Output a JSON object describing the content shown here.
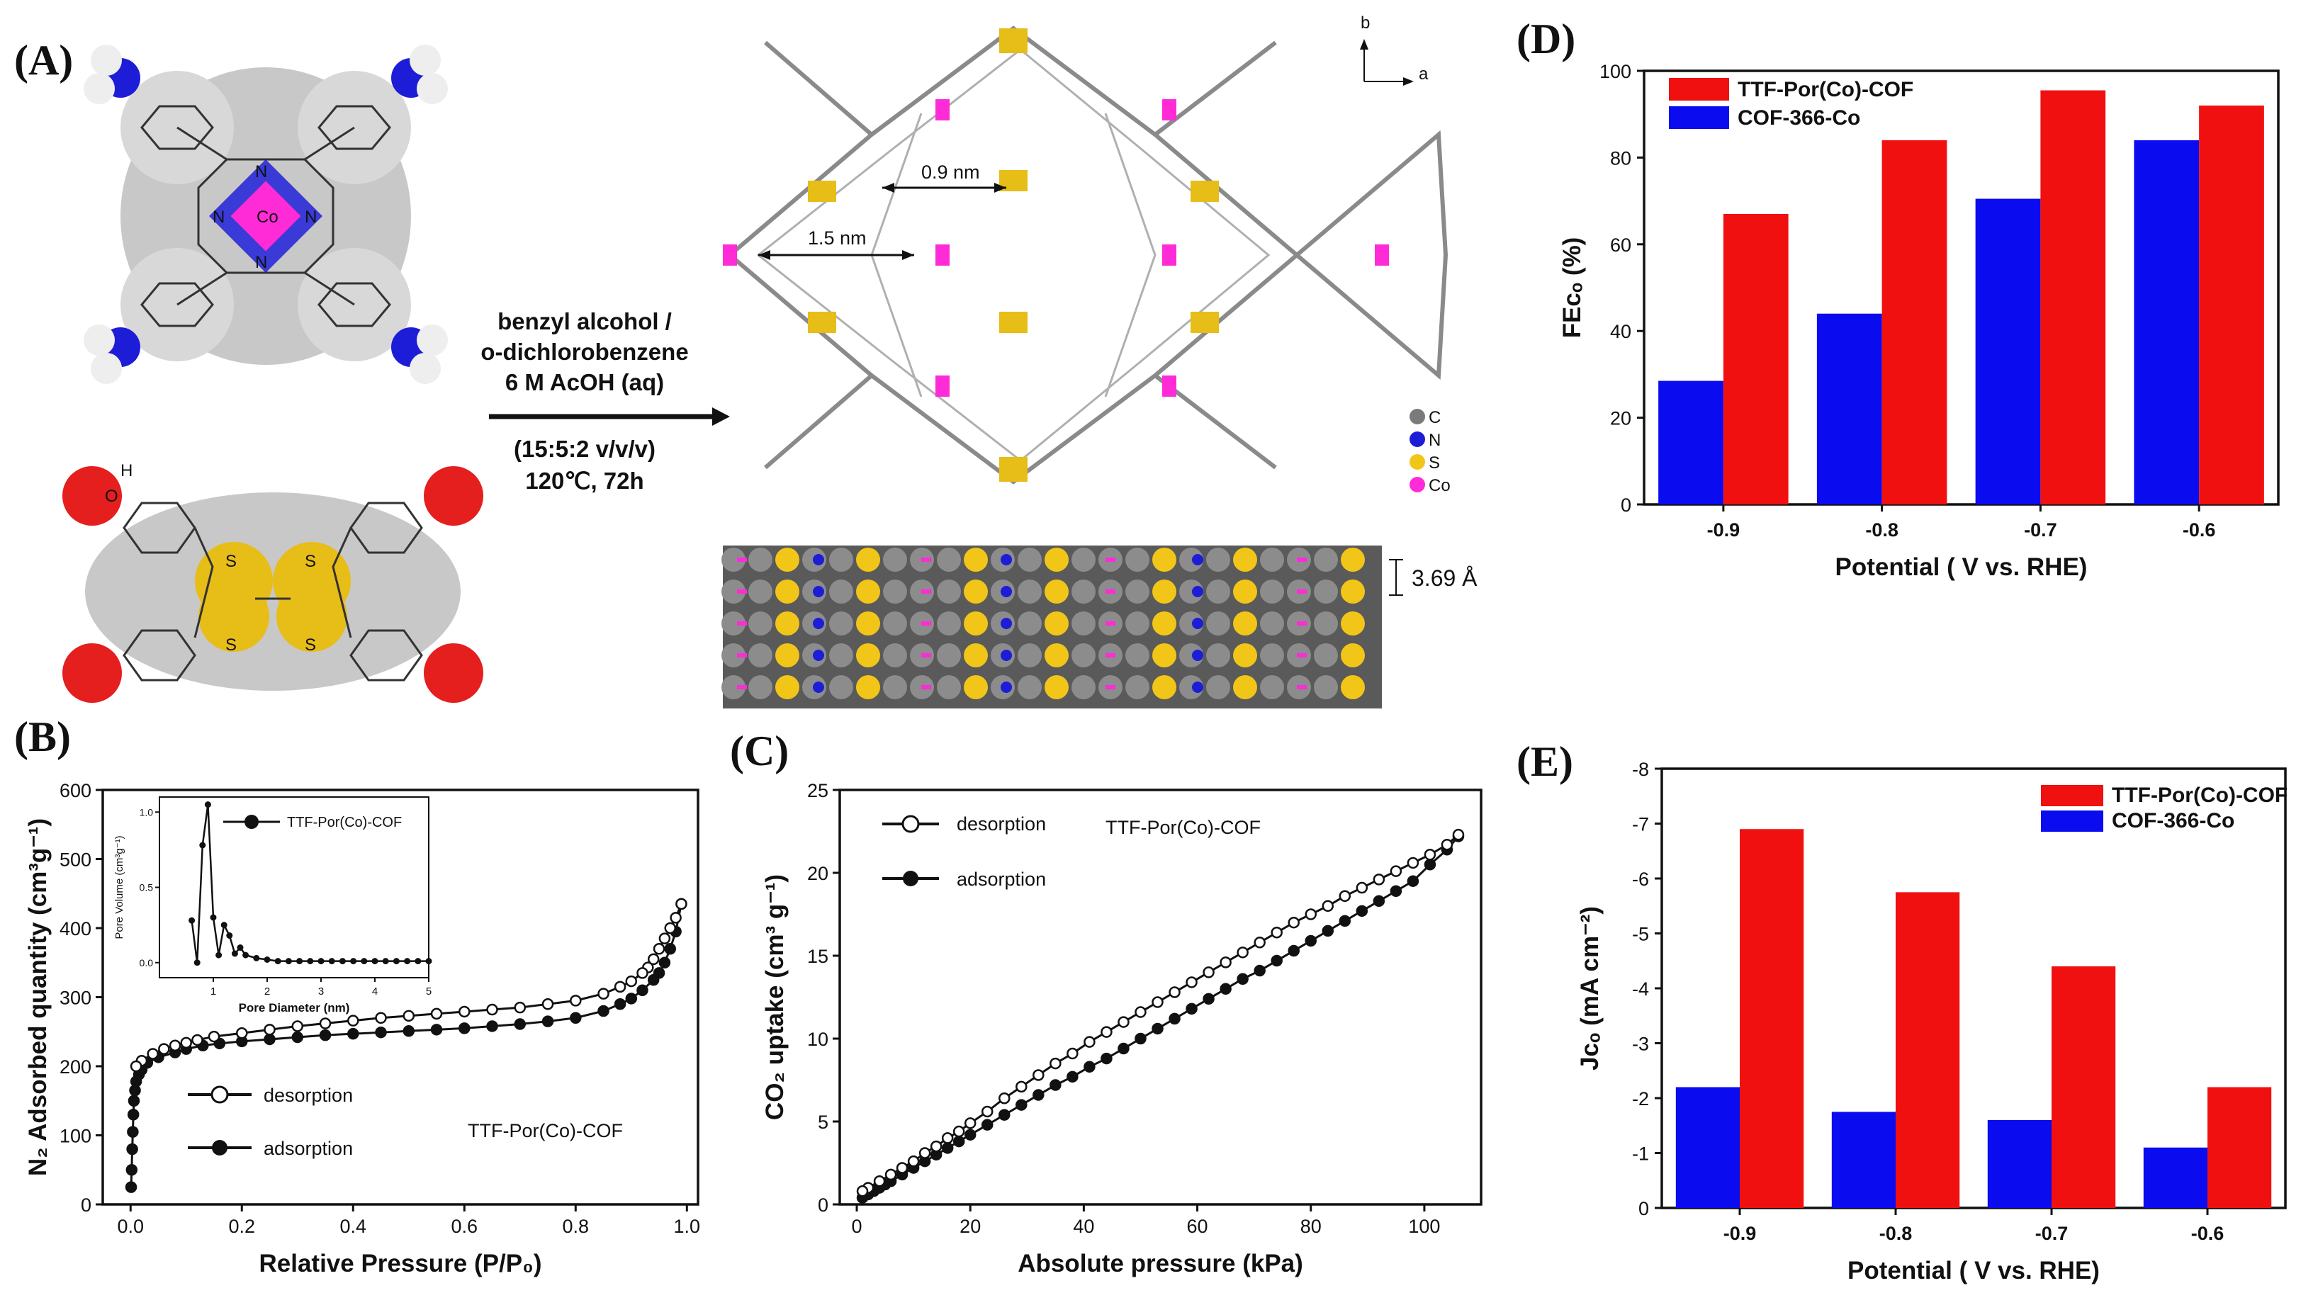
{
  "panels": {
    "A": {
      "label": "(A)",
      "conditions": [
        "benzyl alcohol /",
        "o-dichlorobenzene",
        "6 M AcOH (aq)",
        "(15:5:2 v/v/v)",
        "120℃,  72h"
      ],
      "pore_sizes": [
        "0.9 nm",
        "1.5 nm"
      ],
      "interlayer": "3.69 Å",
      "axes_labels": [
        "b",
        "a"
      ],
      "atom_legend": [
        {
          "symbol": "C",
          "color": "#7a7a7a"
        },
        {
          "symbol": "N",
          "color": "#1d1dd8"
        },
        {
          "symbol": "S",
          "color": "#f2c618"
        },
        {
          "symbol": "Co",
          "color": "#ff2bd6"
        }
      ],
      "atom_texts": [
        "Co",
        "N",
        "N",
        "N",
        "N",
        "H",
        "O",
        "S",
        "S",
        "S",
        "S"
      ]
    },
    "B": {
      "label": "(B)"
    },
    "C": {
      "label": "(C)"
    },
    "D": {
      "label": "(D)"
    },
    "E": {
      "label": "(E)"
    }
  },
  "chart_data": [
    {
      "id": "B",
      "type": "line",
      "title": "",
      "xlabel": "Relative Pressure (P/P₀)",
      "ylabel": "N₂ Adsorbed quantity (cm³g⁻¹)",
      "xlim": [
        -0.05,
        1.02
      ],
      "ylim": [
        0,
        600
      ],
      "xticks": [
        "0.0",
        "0.2",
        "0.4",
        "0.6",
        "0.8",
        "1.0"
      ],
      "yticks": [
        "0",
        "100",
        "200",
        "300",
        "400",
        "500",
        "600"
      ],
      "annotation": "TTF-Por(Co)-COF",
      "legend": [
        "desorption",
        "adsorption"
      ],
      "series": [
        {
          "name": "adsorption",
          "marker": "filled",
          "x": [
            0.001,
            0.002,
            0.003,
            0.004,
            0.005,
            0.006,
            0.008,
            0.01,
            0.015,
            0.02,
            0.03,
            0.05,
            0.08,
            0.1,
            0.13,
            0.16,
            0.2,
            0.25,
            0.3,
            0.35,
            0.4,
            0.45,
            0.5,
            0.55,
            0.6,
            0.65,
            0.7,
            0.75,
            0.8,
            0.85,
            0.88,
            0.9,
            0.92,
            0.94,
            0.95,
            0.96,
            0.97,
            0.98,
            0.99
          ],
          "y": [
            25,
            50,
            80,
            105,
            130,
            150,
            165,
            178,
            188,
            195,
            205,
            213,
            220,
            225,
            230,
            233,
            236,
            239,
            242,
            245,
            247,
            249,
            251,
            253,
            255,
            258,
            261,
            265,
            270,
            280,
            290,
            298,
            310,
            325,
            335,
            350,
            370,
            395,
            435
          ]
        },
        {
          "name": "desorption",
          "marker": "open",
          "x": [
            0.99,
            0.98,
            0.97,
            0.96,
            0.95,
            0.94,
            0.93,
            0.92,
            0.9,
            0.88,
            0.85,
            0.8,
            0.75,
            0.7,
            0.65,
            0.6,
            0.55,
            0.5,
            0.45,
            0.4,
            0.35,
            0.3,
            0.25,
            0.2,
            0.15,
            0.12,
            0.1,
            0.08,
            0.06,
            0.04,
            0.02,
            0.01
          ],
          "y": [
            435,
            415,
            400,
            385,
            370,
            355,
            343,
            335,
            323,
            315,
            305,
            295,
            290,
            285,
            282,
            279,
            276,
            273,
            270,
            266,
            262,
            258,
            253,
            248,
            243,
            238,
            234,
            230,
            225,
            218,
            208,
            200
          ]
        }
      ],
      "inset": {
        "xlabel": "Pore Diameter (nm)",
        "ylabel": "Pore Volume (cm³g⁻¹)",
        "legend": "TTF-Por(Co)-COF",
        "xlim": [
          0,
          5
        ],
        "ylim": [
          -0.1,
          1.1
        ],
        "xticks": [
          "1",
          "2",
          "3",
          "4",
          "5"
        ],
        "yticks": [
          "0.0",
          "0.5",
          "1.0"
        ],
        "x": [
          0.6,
          0.7,
          0.8,
          0.9,
          1.0,
          1.1,
          1.2,
          1.3,
          1.4,
          1.5,
          1.6,
          1.8,
          2.0,
          2.2,
          2.4,
          2.6,
          2.8,
          3.0,
          3.2,
          3.4,
          3.6,
          3.8,
          4.0,
          4.2,
          4.4,
          4.6,
          4.8,
          5.0
        ],
        "y": [
          0.28,
          0.0,
          0.78,
          1.05,
          0.3,
          0.05,
          0.25,
          0.18,
          0.06,
          0.1,
          0.05,
          0.03,
          0.02,
          0.01,
          0.01,
          0.01,
          0.01,
          0.01,
          0.01,
          0.01,
          0.01,
          0.01,
          0.01,
          0.01,
          0.01,
          0.01,
          0.01,
          0.01
        ]
      }
    },
    {
      "id": "C",
      "type": "line",
      "title": "",
      "xlabel": "Absolute pressure (kPa)",
      "ylabel": "CO₂ uptake (cm³ g⁻¹)",
      "xlim": [
        -3,
        110
      ],
      "ylim": [
        0,
        25
      ],
      "xticks": [
        "0",
        "20",
        "40",
        "60",
        "80",
        "100"
      ],
      "yticks": [
        "0",
        "5",
        "10",
        "15",
        "20",
        "25"
      ],
      "annotation": "TTF-Por(Co)-COF",
      "legend": [
        "desorption",
        "adsorption"
      ],
      "series": [
        {
          "name": "adsorption",
          "marker": "filled",
          "x": [
            1,
            2,
            3,
            4,
            5,
            6,
            8,
            10,
            12,
            14,
            16,
            18,
            20,
            23,
            26,
            29,
            32,
            35,
            38,
            41,
            44,
            47,
            50,
            53,
            56,
            59,
            62,
            65,
            68,
            71,
            74,
            77,
            80,
            83,
            86,
            89,
            92,
            95,
            98,
            101,
            104,
            106
          ],
          "y": [
            0.4,
            0.6,
            0.8,
            1.0,
            1.2,
            1.4,
            1.8,
            2.2,
            2.6,
            3.0,
            3.4,
            3.8,
            4.2,
            4.8,
            5.4,
            6.0,
            6.6,
            7.2,
            7.7,
            8.3,
            8.8,
            9.4,
            10.0,
            10.6,
            11.2,
            11.8,
            12.4,
            13.0,
            13.6,
            14.1,
            14.7,
            15.3,
            15.9,
            16.5,
            17.1,
            17.7,
            18.3,
            18.9,
            19.5,
            20.5,
            21.4,
            22.2
          ]
        },
        {
          "name": "desorption",
          "marker": "open",
          "x": [
            106,
            104,
            101,
            98,
            95,
            92,
            89,
            86,
            83,
            80,
            77,
            74,
            71,
            68,
            65,
            62,
            59,
            56,
            53,
            50,
            47,
            44,
            41,
            38,
            35,
            32,
            29,
            26,
            23,
            20,
            18,
            16,
            14,
            12,
            10,
            8,
            6,
            4,
            2,
            1
          ],
          "y": [
            22.3,
            21.7,
            21.1,
            20.6,
            20.1,
            19.6,
            19.1,
            18.6,
            18.0,
            17.5,
            17.0,
            16.4,
            15.8,
            15.2,
            14.6,
            14.0,
            13.4,
            12.8,
            12.2,
            11.6,
            11.0,
            10.4,
            9.8,
            9.1,
            8.5,
            7.8,
            7.1,
            6.4,
            5.6,
            4.9,
            4.4,
            4.0,
            3.5,
            3.1,
            2.6,
            2.2,
            1.8,
            1.4,
            1.0,
            0.8
          ]
        }
      ]
    },
    {
      "id": "D",
      "type": "bar",
      "title": "",
      "xlabel": "Potential ( V vs. RHE)",
      "ylabel": "FEᴄₒ (%)",
      "categories": [
        "-0.9",
        "-0.8",
        "-0.7",
        "-0.6"
      ],
      "ylim": [
        0,
        100
      ],
      "yticks": [
        "0",
        "20",
        "40",
        "60",
        "80",
        "100"
      ],
      "series": [
        {
          "name": "COF-366-Co",
          "color": "#0b0bf0",
          "values": [
            28.5,
            44,
            70.5,
            84
          ]
        },
        {
          "name": "TTF-Por(Co)-COF",
          "color": "#f01010",
          "values": [
            67,
            84,
            95.5,
            92
          ]
        }
      ],
      "legend_order": [
        "TTF-Por(Co)-COF",
        "COF-366-Co"
      ]
    },
    {
      "id": "E",
      "type": "bar",
      "title": "",
      "xlabel": "Potential ( V vs. RHE)",
      "ylabel": "Jᴄₒ (mA cm⁻²)",
      "categories": [
        "-0.9",
        "-0.8",
        "-0.7",
        "-0.6"
      ],
      "ylim": [
        0,
        -8
      ],
      "yticks": [
        "0",
        "-1",
        "-2",
        "-3",
        "-4",
        "-5",
        "-6",
        "-7",
        "-8"
      ],
      "series": [
        {
          "name": "COF-366-Co",
          "color": "#0b0bf0",
          "values": [
            -2.2,
            -1.75,
            -1.6,
            -1.1
          ]
        },
        {
          "name": "TTF-Por(Co)-COF",
          "color": "#f01010",
          "values": [
            -6.9,
            -5.75,
            -4.4,
            -2.2
          ]
        }
      ],
      "legend_order": [
        "TTF-Por(Co)-COF",
        "COF-366-Co"
      ]
    }
  ]
}
